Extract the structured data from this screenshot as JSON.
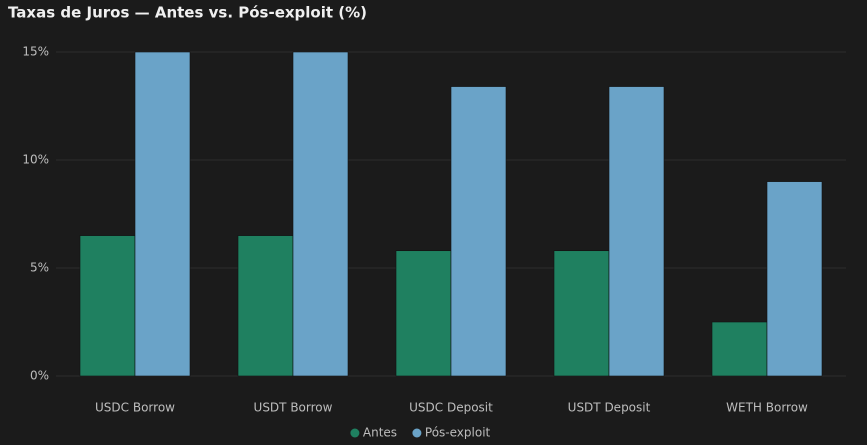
{
  "chart_data": {
    "type": "bar",
    "title": "Taxas de Juros — Antes vs. Pós-exploit (%)",
    "categories": [
      "USDC Borrow",
      "USDT Borrow",
      "USDC Deposit",
      "USDT Deposit",
      "WETH Borrow"
    ],
    "series": [
      {
        "name": "Antes",
        "color": "#1f8060",
        "values": [
          6.5,
          6.5,
          5.8,
          5.8,
          2.5
        ]
      },
      {
        "name": "Pós-exploit",
        "color": "#6aa3c8",
        "values": [
          15,
          15,
          13.4,
          13.4,
          9.0
        ]
      }
    ],
    "ylim": [
      0,
      15
    ],
    "yticks": [
      {
        "value": 0,
        "label": "0%"
      },
      {
        "value": 5,
        "label": "5%"
      },
      {
        "value": 10,
        "label": "10%"
      },
      {
        "value": 15,
        "label": "15%"
      }
    ],
    "grid": true,
    "legend": "bottom"
  }
}
